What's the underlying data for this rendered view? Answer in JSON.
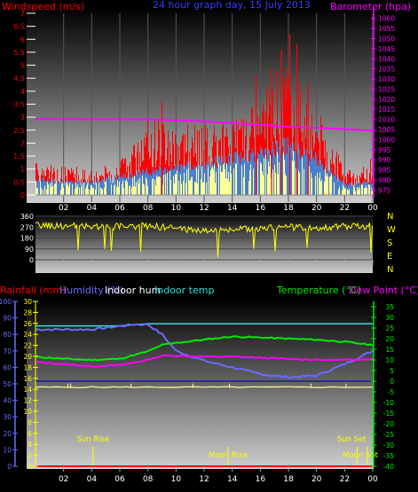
{
  "colors": {
    "background": "#000000",
    "wind": "#ff0000",
    "wind_avg": "#4a7fd0",
    "wind_low": "#ffff99",
    "barometer": "#ff00ff",
    "wind_dir": "#ffff00",
    "rain": "#ff0000",
    "humidity": "#6b6bff",
    "indoor_hum": "#1a1aa0",
    "indoor_temp": "#33dddd",
    "temperature": "#00ee00",
    "dew_point": "#ff00ff",
    "yellow_axis": "#ffff00",
    "purple_axis": "#6b6bff",
    "green_axis": "#00ee00",
    "axis_text": "#ffffff"
  },
  "chart_data": [
    {
      "type": "line",
      "panel": "wind-barometer",
      "title": "24 hour graph day, 15 July 2013",
      "ylabel_left": "Windspeed (m/s)",
      "ylabel_right": "Barometer (hpa)",
      "x_ticks": [
        "02",
        "04",
        "06",
        "08",
        "10",
        "12",
        "14",
        "16",
        "18",
        "20",
        "22",
        "00"
      ],
      "left_axis": {
        "ticks": [
          "0",
          "0.5",
          "1",
          "1.5",
          "2",
          "2.5",
          "3",
          "3.5",
          "4",
          "4.5",
          "5",
          "5.5",
          "6",
          "6.5",
          "7"
        ],
        "range": [
          0,
          7
        ]
      },
      "right_axis": {
        "ticks": [
          "975",
          "980",
          "985",
          "990",
          "995",
          "1000",
          "1005",
          "1010",
          "1015",
          "1020",
          "1025",
          "1030",
          "1035",
          "1040",
          "1045",
          "1050",
          "1055",
          "1060"
        ],
        "range": [
          972.5,
          1062.5
        ]
      },
      "series": [
        {
          "kind": "wind-gust-envelope",
          "hours": [
            0,
            2,
            4,
            6,
            7,
            8,
            9,
            10,
            12,
            14,
            16,
            17,
            18,
            19,
            20,
            21,
            22,
            23,
            24
          ],
          "values": [
            1.2,
            1.0,
            1.0,
            1.2,
            1.8,
            2.8,
            3.0,
            2.5,
            2.5,
            2.6,
            3.5,
            4.3,
            4.6,
            4.0,
            3.2,
            2.0,
            0.9,
            0.8,
            1.5
          ]
        },
        {
          "kind": "wind-average",
          "hours": [
            0,
            4,
            8,
            12,
            16,
            18,
            20,
            22,
            24
          ],
          "values": [
            0.6,
            0.5,
            0.9,
            1.2,
            1.6,
            1.9,
            1.4,
            0.4,
            0.5
          ]
        },
        {
          "kind": "barometer",
          "hours": [
            0,
            8,
            12,
            16,
            18,
            20,
            24
          ],
          "values": [
            1010.1,
            1010.0,
            1009.0,
            1007.3,
            1006.3,
            1005.8,
            1004.4
          ]
        }
      ]
    },
    {
      "type": "line",
      "panel": "wind-direction",
      "left_axis": {
        "ticks": [
          "0",
          "90",
          "180",
          "270",
          "360"
        ],
        "range": [
          0,
          360
        ]
      },
      "right_labels": [
        "N",
        "W",
        "S",
        "E",
        "N"
      ],
      "series": [
        {
          "kind": "direction",
          "hours": [
            0,
            4,
            8,
            10,
            12,
            14,
            16,
            18,
            20,
            22,
            24
          ],
          "values": [
            285,
            275,
            280,
            260,
            240,
            250,
            260,
            270,
            265,
            275,
            280
          ]
        }
      ]
    },
    {
      "type": "line",
      "panel": "temperature-humidity",
      "legend": [
        "Rainfall (mm)",
        "Humidity (%)",
        "Indoor hum",
        "Indoor temp",
        "Temperature (°C)",
        "Dew Point (°C)"
      ],
      "x_ticks": [
        "02",
        "04",
        "06",
        "08",
        "10",
        "12",
        "14",
        "16",
        "18",
        "20",
        "22",
        "00"
      ],
      "rain_axis": {
        "ticks": [
          "0",
          "2",
          "4",
          "6",
          "8",
          "10",
          "12",
          "14",
          "16",
          "18",
          "20",
          "22",
          "24",
          "26",
          "28",
          "30"
        ],
        "range": [
          0,
          30
        ]
      },
      "humidity_axis": {
        "ticks": [
          "0",
          "10",
          "20",
          "30",
          "40",
          "50",
          "60",
          "70",
          "80",
          "90",
          "100"
        ],
        "range": [
          0,
          100
        ]
      },
      "temp_axis": {
        "ticks": [
          "-40",
          "-35",
          "-30",
          "-25",
          "-20",
          "-15",
          "-10",
          "-5",
          "0",
          "5",
          "10",
          "15",
          "20",
          "25",
          "30",
          "35"
        ],
        "range": [
          -40,
          37.5
        ]
      },
      "events": [
        {
          "label": "Sun Rise",
          "hour": 4.1
        },
        {
          "label": "Moon Rise",
          "hour": 13.7
        },
        {
          "label": "Sun Set",
          "hour": 22.9
        },
        {
          "label": "Moon Set",
          "hour": 23.6
        }
      ],
      "series": [
        {
          "name": "Humidity (%)",
          "hours": [
            0,
            2,
            4,
            6,
            7,
            8,
            9,
            10,
            11,
            12,
            14,
            16,
            18,
            20,
            22,
            24
          ],
          "values": [
            83,
            83,
            83,
            85,
            86,
            86,
            80,
            70,
            67,
            64,
            60,
            56,
            54,
            55,
            62,
            70
          ]
        },
        {
          "name": "Indoor temp",
          "hours": [
            0,
            6,
            8,
            12,
            18,
            24
          ],
          "values": [
            26,
            26,
            27,
            27,
            27,
            27
          ]
        },
        {
          "name": "Temperature (°C)",
          "hours": [
            0,
            2,
            4,
            6,
            8,
            9,
            10,
            12,
            14,
            16,
            18,
            20,
            22,
            24
          ],
          "values": [
            11.5,
            10.5,
            10,
            10.5,
            14,
            17,
            18,
            19.5,
            21,
            20.5,
            20,
            19.5,
            18.5,
            17
          ]
        },
        {
          "name": "Dew Point (°C)",
          "hours": [
            0,
            2,
            4,
            6,
            8,
            9,
            10,
            12,
            14,
            16,
            18,
            20,
            22,
            24
          ],
          "values": [
            9,
            8,
            7,
            7.5,
            10,
            12,
            12,
            11.5,
            11.5,
            11,
            10.5,
            10,
            10,
            10.5
          ]
        },
        {
          "name": "Indoor hum",
          "hours": [
            0,
            12,
            24
          ],
          "values": [
            48,
            48,
            48
          ]
        },
        {
          "name": "Rainfall (mm)",
          "hours": [
            0,
            24
          ],
          "values": [
            0,
            0
          ]
        }
      ]
    }
  ]
}
